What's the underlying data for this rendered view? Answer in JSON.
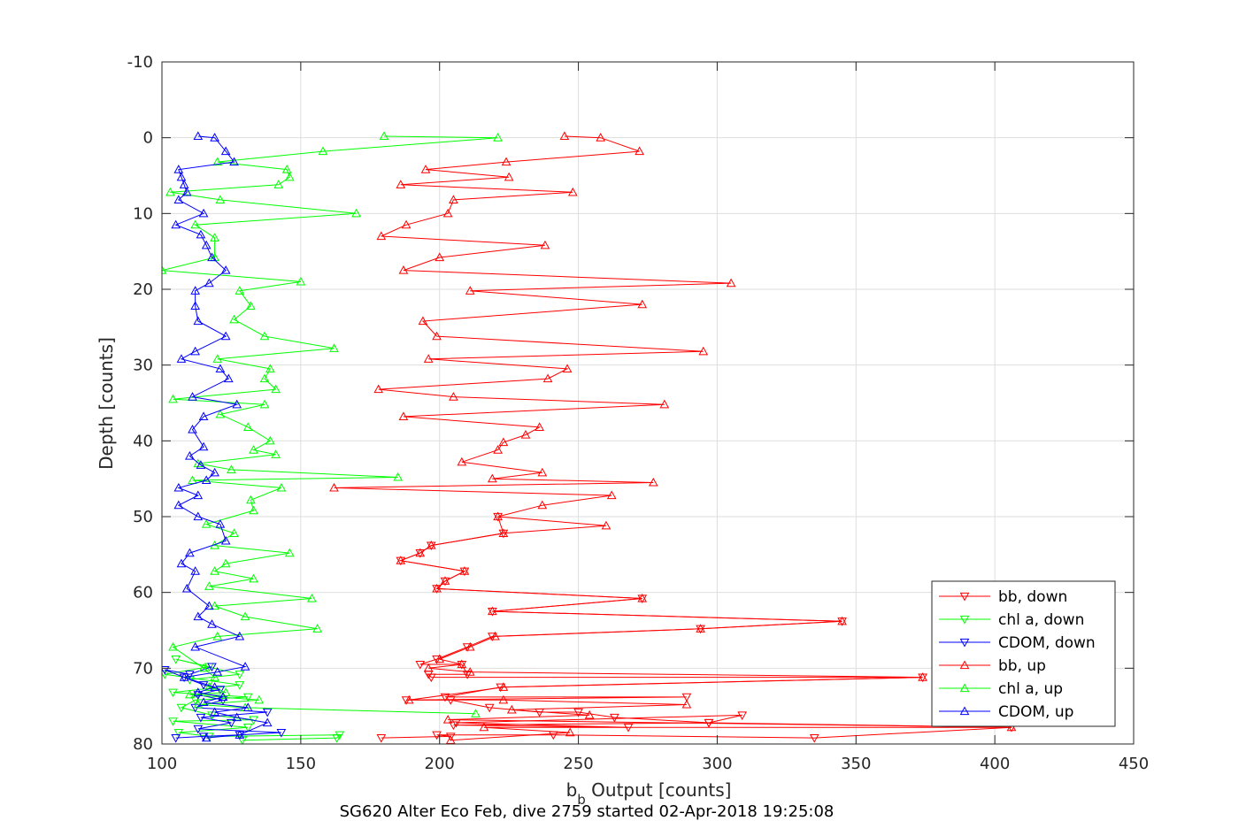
{
  "chart_data": {
    "type": "line",
    "xlabel_main": "b",
    "xlabel_sub": "b",
    "xlabel_rest": " Output [counts]",
    "ylabel": "Depth [counts]",
    "caption": "SG620 Alter Eco Feb, dive 2759 started 02-Apr-2018 19:25:08",
    "xlim": [
      100,
      450
    ],
    "ylim": [
      -10,
      80
    ],
    "y_reversed": true,
    "grid": true,
    "legend_position": "bottom-right",
    "x_ticks": [
      "100",
      "150",
      "200",
      "250",
      "300",
      "350",
      "400",
      "450"
    ],
    "y_ticks": [
      "-10",
      "0",
      "10",
      "20",
      "30",
      "40",
      "50",
      "60",
      "70",
      "80"
    ],
    "series": [
      {
        "name": "bb, down",
        "color": "#ff0000",
        "marker": "triangle-down",
        "points": [
          [
            179,
            79.2
          ],
          [
            204,
            79
          ],
          [
            199,
            78.8
          ],
          [
            241,
            78.8
          ],
          [
            335,
            79.2
          ],
          [
            406,
            77.8
          ],
          [
            297,
            77.2
          ],
          [
            205,
            77.5
          ],
          [
            268,
            77.8
          ],
          [
            206,
            77.2
          ],
          [
            309,
            76.2
          ],
          [
            297,
            77.2
          ],
          [
            263,
            76.5
          ],
          [
            250,
            75.8
          ],
          [
            236,
            75.8
          ],
          [
            218,
            75.2
          ],
          [
            204,
            74.2
          ],
          [
            188,
            74.2
          ],
          [
            289,
            73.8
          ],
          [
            202,
            73.8
          ],
          [
            222,
            72.5
          ],
          [
            374,
            71.2
          ],
          [
            197,
            71.2
          ],
          [
            196,
            70.8
          ],
          [
            210,
            70.8
          ],
          [
            208,
            69.5
          ],
          [
            193,
            69.5
          ],
          [
            199,
            68.8
          ],
          [
            210,
            67.2
          ],
          [
            219,
            65.8
          ],
          [
            294,
            64.8
          ],
          [
            345,
            63.8
          ],
          [
            219,
            62.5
          ],
          [
            273,
            60.8
          ],
          [
            199,
            59.5
          ],
          [
            202,
            58.5
          ],
          [
            209,
            57.2
          ],
          [
            186,
            55.8
          ],
          [
            193,
            54.8
          ],
          [
            197,
            53.8
          ],
          [
            223,
            52.2
          ],
          [
            221,
            50.0
          ]
        ]
      },
      {
        "name": "chl a, down",
        "color": "#00ff00",
        "marker": "triangle-down",
        "points": [
          [
            129,
            79.5
          ],
          [
            163,
            79.2
          ],
          [
            164,
            78.8
          ],
          [
            117,
            79.0
          ],
          [
            106,
            78.5
          ],
          [
            131,
            77.8
          ],
          [
            104,
            77.0
          ],
          [
            133,
            76.8
          ],
          [
            118,
            76.2
          ],
          [
            107,
            75.2
          ],
          [
            112,
            74.2
          ],
          [
            131,
            73.8
          ],
          [
            104,
            73.2
          ],
          [
            128,
            72.2
          ],
          [
            101,
            70.8
          ],
          [
            117,
            69.8
          ],
          [
            105,
            68.8
          ],
          [
            128,
            70.8
          ],
          [
            110,
            71.5
          ]
        ]
      },
      {
        "name": "CDOM, down",
        "color": "#0000ff",
        "marker": "triangle-down",
        "points": [
          [
            105,
            79.2
          ],
          [
            115,
            79.0
          ],
          [
            128,
            78.8
          ],
          [
            143,
            78.5
          ],
          [
            113,
            78.0
          ],
          [
            125,
            77.2
          ],
          [
            114,
            76.5
          ],
          [
            138,
            75.8
          ],
          [
            112,
            75.2
          ],
          [
            122,
            74.2
          ],
          [
            113,
            73.5
          ],
          [
            121,
            72.8
          ],
          [
            115,
            72.2
          ],
          [
            108,
            71.2
          ],
          [
            101,
            70.2
          ],
          [
            110,
            70.8
          ],
          [
            118,
            69.8
          ]
        ]
      },
      {
        "name": "bb, up",
        "color": "#ff0000",
        "marker": "triangle-up",
        "points": [
          [
            204,
            79.5
          ],
          [
            247,
            78.5
          ],
          [
            216,
            77.8
          ],
          [
            406,
            77.8
          ],
          [
            203,
            76.8
          ],
          [
            254,
            76.2
          ],
          [
            226,
            75.5
          ],
          [
            289,
            74.8
          ],
          [
            223,
            74.2
          ],
          [
            189,
            74.2
          ],
          [
            223,
            72.5
          ],
          [
            374,
            71.2
          ],
          [
            211,
            70.5
          ],
          [
            196,
            70.0
          ],
          [
            208,
            69.5
          ],
          [
            200,
            68.8
          ],
          [
            211,
            67.2
          ],
          [
            220,
            65.8
          ],
          [
            294,
            64.8
          ],
          [
            345,
            63.8
          ],
          [
            219,
            62.5
          ],
          [
            273,
            60.8
          ],
          [
            199,
            59.5
          ],
          [
            202,
            58.5
          ],
          [
            209,
            57.2
          ],
          [
            186,
            55.8
          ],
          [
            193,
            54.8
          ],
          [
            197,
            53.8
          ],
          [
            223,
            52.2
          ],
          [
            260,
            51.2
          ],
          [
            221,
            50.0
          ],
          [
            237,
            48.5
          ],
          [
            262,
            47.2
          ],
          [
            162,
            46.2
          ],
          [
            277,
            45.5
          ],
          [
            219,
            45.0
          ],
          [
            237,
            44.2
          ],
          [
            208,
            42.8
          ],
          [
            221,
            41.2
          ],
          [
            223,
            40.2
          ],
          [
            231,
            39.2
          ],
          [
            236,
            38.2
          ],
          [
            187,
            36.8
          ],
          [
            281,
            35.2
          ],
          [
            205,
            34.2
          ],
          [
            178,
            33.2
          ],
          [
            239,
            31.8
          ],
          [
            246,
            30.5
          ],
          [
            196,
            29.2
          ],
          [
            295,
            28.2
          ],
          [
            199,
            26.2
          ],
          [
            194,
            24.2
          ],
          [
            273,
            22.0
          ],
          [
            211,
            20.2
          ],
          [
            305,
            19.2
          ],
          [
            187,
            17.5
          ],
          [
            200,
            15.8
          ],
          [
            238,
            14.2
          ],
          [
            179,
            13.0
          ],
          [
            188,
            11.5
          ],
          [
            203,
            10.0
          ],
          [
            205,
            8.2
          ],
          [
            248,
            7.2
          ],
          [
            186,
            6.2
          ],
          [
            225,
            5.2
          ],
          [
            195,
            4.2
          ],
          [
            224,
            3.2
          ],
          [
            272,
            1.8
          ],
          [
            258,
            0.0
          ],
          [
            245,
            -0.2
          ]
        ]
      },
      {
        "name": "chl a, up",
        "color": "#00ff00",
        "marker": "triangle-up",
        "points": [
          [
            213,
            76.0
          ],
          [
            130,
            75.2
          ],
          [
            113,
            74.8
          ],
          [
            135,
            74.2
          ],
          [
            110,
            73.5
          ],
          [
            123,
            73.2
          ],
          [
            117,
            72.5
          ],
          [
            119,
            71.2
          ],
          [
            115,
            70.0
          ],
          [
            104,
            67.2
          ],
          [
            120,
            65.8
          ],
          [
            156,
            64.8
          ],
          [
            130,
            63.2
          ],
          [
            119,
            61.8
          ],
          [
            154,
            60.8
          ],
          [
            117,
            59.2
          ],
          [
            133,
            58.2
          ],
          [
            119,
            57.2
          ],
          [
            123,
            56.2
          ],
          [
            146,
            54.8
          ],
          [
            119,
            53.8
          ],
          [
            126,
            52.2
          ],
          [
            116,
            51.0
          ],
          [
            133,
            49.2
          ],
          [
            132,
            47.8
          ],
          [
            143,
            46.2
          ],
          [
            111,
            45.2
          ],
          [
            185,
            44.8
          ],
          [
            125,
            43.8
          ],
          [
            113,
            43.0
          ],
          [
            141,
            41.8
          ],
          [
            133,
            41.2
          ],
          [
            139,
            40.0
          ],
          [
            131,
            38.2
          ],
          [
            121,
            36.5
          ],
          [
            137,
            35.2
          ],
          [
            104,
            34.5
          ],
          [
            141,
            33.2
          ],
          [
            137,
            31.8
          ],
          [
            139,
            30.5
          ],
          [
            120,
            29.2
          ],
          [
            162,
            27.8
          ],
          [
            137,
            26.2
          ],
          [
            126,
            24.0
          ],
          [
            132,
            22.2
          ],
          [
            128,
            20.2
          ],
          [
            150,
            19.0
          ],
          [
            100,
            17.5
          ],
          [
            119,
            15.8
          ],
          [
            119,
            13.2
          ],
          [
            112,
            11.5
          ],
          [
            170,
            10.0
          ],
          [
            121,
            8.2
          ],
          [
            103,
            7.2
          ],
          [
            142,
            6.2
          ],
          [
            146,
            5.2
          ],
          [
            145,
            4.2
          ],
          [
            120,
            3.2
          ],
          [
            158,
            1.8
          ],
          [
            221,
            0.0
          ],
          [
            180,
            -0.2
          ]
        ]
      },
      {
        "name": "CDOM, up",
        "color": "#0000ff",
        "marker": "triangle-up",
        "points": [
          [
            116,
            79.2
          ],
          [
            128,
            78.8
          ],
          [
            138,
            77.2
          ],
          [
            127,
            76.5
          ],
          [
            119,
            75.8
          ],
          [
            131,
            75.2
          ],
          [
            115,
            74.5
          ],
          [
            122,
            73.8
          ],
          [
            113,
            73.2
          ],
          [
            119,
            72.5
          ],
          [
            108,
            71.2
          ],
          [
            120,
            70.5
          ],
          [
            130,
            69.8
          ],
          [
            112,
            67.2
          ],
          [
            128,
            65.8
          ],
          [
            118,
            64.2
          ],
          [
            113,
            63.2
          ],
          [
            117,
            61.8
          ],
          [
            109,
            59.5
          ],
          [
            112,
            57.2
          ],
          [
            107,
            56.2
          ],
          [
            110,
            54.8
          ],
          [
            123,
            53.2
          ],
          [
            121,
            51.0
          ],
          [
            113,
            50.0
          ],
          [
            106,
            48.5
          ],
          [
            113,
            47.2
          ],
          [
            106,
            46.2
          ],
          [
            116,
            45.2
          ],
          [
            119,
            44.2
          ],
          [
            114,
            43.2
          ],
          [
            110,
            42.0
          ],
          [
            115,
            40.8
          ],
          [
            111,
            38.5
          ],
          [
            115,
            36.8
          ],
          [
            127,
            35.2
          ],
          [
            111,
            34.2
          ],
          [
            124,
            31.8
          ],
          [
            121,
            30.5
          ],
          [
            107,
            29.2
          ],
          [
            112,
            28.2
          ],
          [
            123,
            26.2
          ],
          [
            113,
            24.2
          ],
          [
            112,
            22.2
          ],
          [
            112,
            20.2
          ],
          [
            117,
            19.2
          ],
          [
            123,
            17.5
          ],
          [
            118,
            15.8
          ],
          [
            116,
            14.2
          ],
          [
            114,
            12.8
          ],
          [
            105,
            11.5
          ],
          [
            115,
            10.0
          ],
          [
            106,
            8.2
          ],
          [
            109,
            7.2
          ],
          [
            108,
            6.2
          ],
          [
            107,
            5.2
          ],
          [
            106,
            4.2
          ],
          [
            126,
            3.2
          ],
          [
            123,
            1.8
          ],
          [
            119,
            0.0
          ],
          [
            113,
            -0.2
          ]
        ]
      }
    ]
  }
}
